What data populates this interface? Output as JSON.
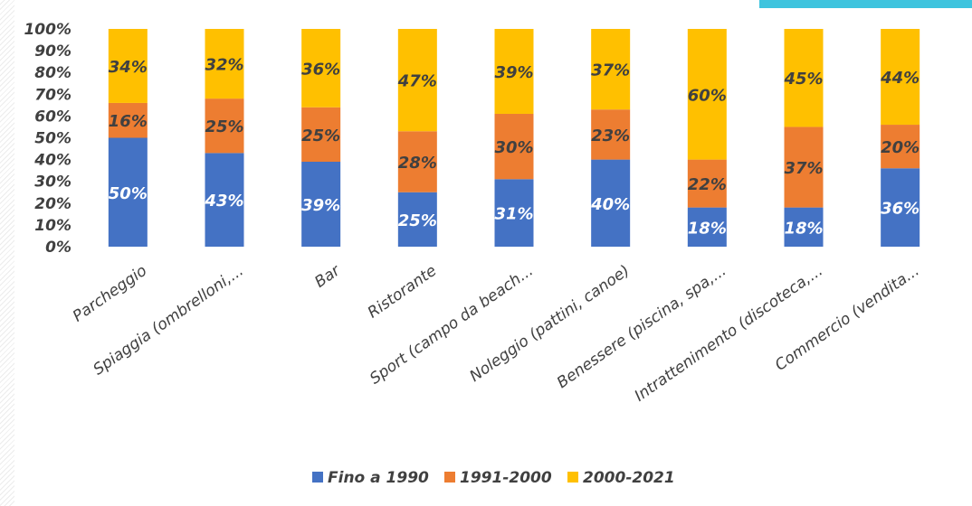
{
  "chart_data": {
    "type": "bar",
    "stacked": true,
    "percent_stacked": true,
    "title": "",
    "xlabel": "",
    "ylabel": "",
    "ylim": [
      0,
      100
    ],
    "y_ticks": [
      "0%",
      "10%",
      "20%",
      "30%",
      "40%",
      "50%",
      "60%",
      "70%",
      "80%",
      "90%",
      "100%"
    ],
    "grid": false,
    "legend": {
      "position": "bottom"
    },
    "categories": [
      "Parcheggio",
      "Spiaggia (ombrelloni,...",
      "Bar",
      "Ristorante",
      "Sport (campo da beach...",
      "Noleggio (pattini, canoe)",
      "Benessere (piscina, spa,...",
      "Intrattenimento (discoteca,...",
      "Commercio (vendita..."
    ],
    "series": [
      {
        "name": "Fino a 1990",
        "color": "#4472c4",
        "values": [
          50,
          43,
          39,
          25,
          31,
          40,
          18,
          18,
          36
        ],
        "labels": [
          "50%",
          "43%",
          "39%",
          "25%",
          "31%",
          "40%",
          "18%",
          "18%",
          "36%"
        ]
      },
      {
        "name": "1991-2000",
        "color": "#ed7d31",
        "values": [
          16,
          25,
          25,
          28,
          30,
          23,
          22,
          37,
          20
        ],
        "labels": [
          "16%",
          "25%",
          "25%",
          "28%",
          "30%",
          "23%",
          "22%",
          "37%",
          "20%"
        ]
      },
      {
        "name": "2000-2021",
        "color": "#ffc000",
        "values": [
          34,
          32,
          36,
          47,
          39,
          37,
          60,
          45,
          44
        ],
        "labels": [
          "34%",
          "32%",
          "36%",
          "47%",
          "39%",
          "37%",
          "60%",
          "45%",
          "44%"
        ]
      }
    ]
  }
}
